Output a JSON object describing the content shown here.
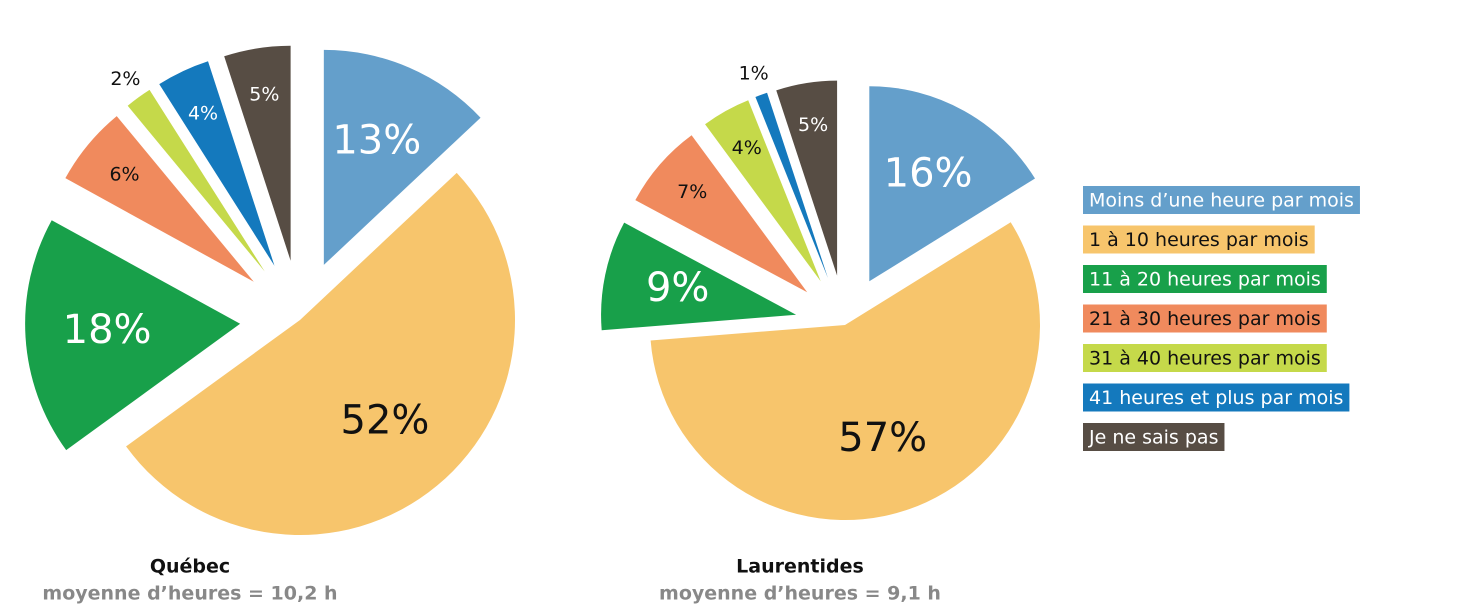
{
  "chart_data": [
    {
      "type": "pie",
      "title": "Québec",
      "subtitle": "moyenne d’heures = 10,2 h",
      "categories": [
        "Moins d’une heure par mois",
        "1 à 10 heures par mois",
        "11 à 20 heures par mois",
        "21 à 30 heures par mois",
        "31 à 40 heures par mois",
        "41 heures et plus par mois",
        "Je ne sais pas"
      ],
      "colors": [
        "#649fcb",
        "#f7c56c",
        "#18a04a",
        "#f08a5d",
        "#c5d94a",
        "#1479bd",
        "#574d44"
      ],
      "values": [
        13,
        52,
        18,
        6,
        2,
        4,
        5
      ],
      "value_labels": [
        "13%",
        "52%",
        "18%",
        "6%",
        "2%",
        "4%",
        "5%"
      ]
    },
    {
      "type": "pie",
      "title": "Laurentides",
      "subtitle": "moyenne d’heures = 9,1 h",
      "values": [
        16,
        57,
        9,
        7,
        4,
        1,
        5
      ],
      "value_labels": [
        "16%",
        "57%",
        "9%",
        "7%",
        "4%",
        "1%",
        "5%"
      ]
    }
  ]
}
